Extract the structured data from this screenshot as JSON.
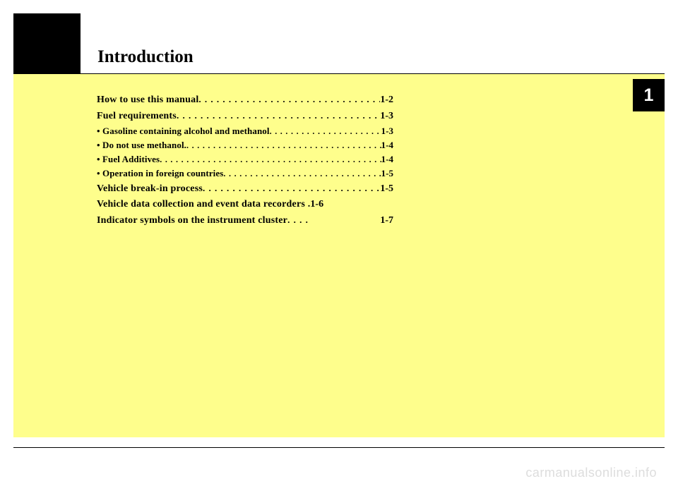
{
  "chapter": {
    "title": "Introduction",
    "number": "1"
  },
  "toc": [
    {
      "type": "main",
      "label": "How to use this manual",
      "page": "1-2"
    },
    {
      "type": "main",
      "label": "Fuel requirements",
      "page": "1-3"
    },
    {
      "type": "sub",
      "label": "• Gasoline containing alcohol and methanol",
      "page": "1-3"
    },
    {
      "type": "sub",
      "label": "• Do not use methanol.",
      "page": "1-4"
    },
    {
      "type": "sub",
      "label": "• Fuel Additives",
      "page": "1-4"
    },
    {
      "type": "sub",
      "label": "• Operation in foreign countries",
      "page": "1-5"
    },
    {
      "type": "main",
      "label": "Vehicle break-in process",
      "page": "1-5"
    },
    {
      "type": "main",
      "label": "Vehicle data collection and event data recorders .",
      "page": "1-6",
      "nodots": true
    },
    {
      "type": "main",
      "label": "Indicator symbols on the instrument cluster ",
      "page": "1-7",
      "shortdots": true
    }
  ],
  "watermark": "carmanualsonline.info",
  "colors": {
    "yellow": "#fefe8c",
    "black": "#000000",
    "white": "#ffffff",
    "watermark_gray": "#dddddd"
  }
}
